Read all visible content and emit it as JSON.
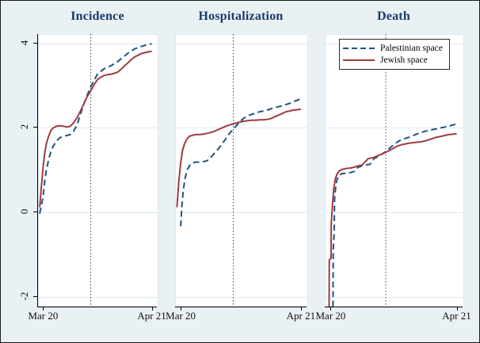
{
  "figure": {
    "background": "#e9f1f4",
    "border_color": "#1a1a1a",
    "title_color": "#1b3a6b",
    "gridline_color": "#dde9ee",
    "reference_line_color": "#444444"
  },
  "legend": {
    "items": [
      {
        "label": "Palestinian space",
        "style": "dashed",
        "color": "#1f5382"
      },
      {
        "label": "Jewish space",
        "style": "solid",
        "color": "#9e3c40"
      }
    ]
  },
  "y_axis": {
    "ticks": [
      {
        "value": -2,
        "label": "-2"
      },
      {
        "value": 0,
        "label": "0"
      },
      {
        "value": 2,
        "label": "2"
      },
      {
        "value": 4,
        "label": "4"
      }
    ]
  },
  "chart_data": [
    {
      "type": "line",
      "title": "Incidence",
      "xlabel": "",
      "ylabel": "",
      "xlim_days": [
        -1.5,
        33.5
      ],
      "ylim": [
        -2.25,
        4.2
      ],
      "grid": true,
      "legend_position": "top-right-of-third-panel",
      "x_ticks": [
        {
          "day": 0,
          "label": "Mar 20"
        },
        {
          "day": 32,
          "label": "Apr 21"
        }
      ],
      "vline_day": 14,
      "series": [
        {
          "name": "Palestinian space",
          "style": "dashed",
          "color": "#1f5382",
          "points": [
            [
              -1,
              -0.05
            ],
            [
              0,
              0.35
            ],
            [
              0.5,
              0.75
            ],
            [
              1,
              1.0
            ],
            [
              1.7,
              1.25
            ],
            [
              2.3,
              1.42
            ],
            [
              3,
              1.55
            ],
            [
              4,
              1.68
            ],
            [
              5,
              1.75
            ],
            [
              6,
              1.78
            ],
            [
              7,
              1.8
            ],
            [
              8,
              1.82
            ],
            [
              9,
              1.9
            ],
            [
              10,
              2.05
            ],
            [
              11,
              2.3
            ],
            [
              12,
              2.55
            ],
            [
              13,
              2.75
            ],
            [
              14,
              2.95
            ],
            [
              15,
              3.1
            ],
            [
              16,
              3.25
            ],
            [
              17,
              3.32
            ],
            [
              18,
              3.38
            ],
            [
              19,
              3.42
            ],
            [
              20,
              3.45
            ],
            [
              21,
              3.5
            ],
            [
              22,
              3.55
            ],
            [
              23,
              3.62
            ],
            [
              24,
              3.68
            ],
            [
              25,
              3.75
            ],
            [
              26,
              3.8
            ],
            [
              27,
              3.85
            ],
            [
              28,
              3.88
            ],
            [
              29,
              3.91
            ],
            [
              30,
              3.93
            ],
            [
              31,
              3.95
            ],
            [
              32,
              3.97
            ]
          ]
        },
        {
          "name": "Jewish space",
          "style": "solid",
          "color": "#9e3c40",
          "points": [
            [
              -1,
              0.1
            ],
            [
              -0.5,
              0.6
            ],
            [
              0,
              1.05
            ],
            [
              0.5,
              1.4
            ],
            [
              1,
              1.62
            ],
            [
              1.7,
              1.8
            ],
            [
              2.3,
              1.92
            ],
            [
              3,
              1.98
            ],
            [
              4,
              2.02
            ],
            [
              5,
              2.03
            ],
            [
              6,
              2.02
            ],
            [
              7,
              2.0
            ],
            [
              8,
              2.02
            ],
            [
              9,
              2.1
            ],
            [
              10,
              2.22
            ],
            [
              11,
              2.38
            ],
            [
              12,
              2.55
            ],
            [
              13,
              2.72
            ],
            [
              14,
              2.85
            ],
            [
              15,
              3.0
            ],
            [
              16,
              3.12
            ],
            [
              17,
              3.18
            ],
            [
              18,
              3.22
            ],
            [
              19,
              3.24
            ],
            [
              20,
              3.25
            ],
            [
              21,
              3.27
            ],
            [
              22,
              3.3
            ],
            [
              23,
              3.37
            ],
            [
              24,
              3.45
            ],
            [
              25,
              3.52
            ],
            [
              26,
              3.6
            ],
            [
              27,
              3.66
            ],
            [
              28,
              3.7
            ],
            [
              29,
              3.74
            ],
            [
              30,
              3.76
            ],
            [
              31,
              3.78
            ],
            [
              32,
              3.79
            ]
          ]
        }
      ]
    },
    {
      "type": "line",
      "title": "Hospitalization",
      "xlabel": "",
      "ylabel": "",
      "xlim_days": [
        -1.5,
        33.5
      ],
      "ylim": [
        -2.25,
        4.2
      ],
      "grid": true,
      "x_ticks": [
        {
          "day": 0,
          "label": "Mar 20"
        },
        {
          "day": 32,
          "label": "Apr 21"
        }
      ],
      "vline_day": 14,
      "series": [
        {
          "name": "Palestinian space",
          "style": "dashed",
          "color": "#1f5382",
          "points": [
            [
              0,
              -0.35
            ],
            [
              0.3,
              0.1
            ],
            [
              0.7,
              0.5
            ],
            [
              1.2,
              0.8
            ],
            [
              1.8,
              1.0
            ],
            [
              2.5,
              1.1
            ],
            [
              3.2,
              1.15
            ],
            [
              4,
              1.17
            ],
            [
              5,
              1.17
            ],
            [
              6,
              1.18
            ],
            [
              7,
              1.2
            ],
            [
              8,
              1.28
            ],
            [
              9,
              1.38
            ],
            [
              10,
              1.48
            ],
            [
              11,
              1.6
            ],
            [
              12,
              1.72
            ],
            [
              13,
              1.85
            ],
            [
              14,
              1.95
            ],
            [
              15,
              2.05
            ],
            [
              16,
              2.15
            ],
            [
              17,
              2.22
            ],
            [
              18,
              2.27
            ],
            [
              19,
              2.3
            ],
            [
              20,
              2.33
            ],
            [
              21,
              2.36
            ],
            [
              22,
              2.38
            ],
            [
              23,
              2.4
            ],
            [
              24,
              2.43
            ],
            [
              25,
              2.46
            ],
            [
              26,
              2.48
            ],
            [
              27,
              2.5
            ],
            [
              28,
              2.53
            ],
            [
              29,
              2.56
            ],
            [
              30,
              2.6
            ],
            [
              31,
              2.63
            ],
            [
              32,
              2.67
            ]
          ]
        },
        {
          "name": "Jewish space",
          "style": "solid",
          "color": "#9e3c40",
          "points": [
            [
              -1,
              0.1
            ],
            [
              -0.5,
              0.7
            ],
            [
              0,
              1.15
            ],
            [
              0.5,
              1.45
            ],
            [
              1,
              1.6
            ],
            [
              1.7,
              1.72
            ],
            [
              2.3,
              1.78
            ],
            [
              3,
              1.8
            ],
            [
              4,
              1.82
            ],
            [
              5,
              1.82
            ],
            [
              6,
              1.83
            ],
            [
              7,
              1.85
            ],
            [
              8,
              1.87
            ],
            [
              9,
              1.9
            ],
            [
              10,
              1.94
            ],
            [
              11,
              1.98
            ],
            [
              12,
              2.02
            ],
            [
              13,
              2.05
            ],
            [
              14,
              2.07
            ],
            [
              15,
              2.1
            ],
            [
              16,
              2.12
            ],
            [
              17,
              2.14
            ],
            [
              18,
              2.15
            ],
            [
              19,
              2.16
            ],
            [
              20,
              2.16
            ],
            [
              21,
              2.17
            ],
            [
              22,
              2.17
            ],
            [
              23,
              2.18
            ],
            [
              24,
              2.2
            ],
            [
              25,
              2.24
            ],
            [
              26,
              2.28
            ],
            [
              27,
              2.32
            ],
            [
              28,
              2.36
            ],
            [
              29,
              2.38
            ],
            [
              30,
              2.4
            ],
            [
              31,
              2.41
            ],
            [
              32,
              2.42
            ]
          ]
        }
      ]
    },
    {
      "type": "line",
      "title": "Death",
      "xlabel": "",
      "ylabel": "",
      "xlim_days": [
        -1.5,
        33.5
      ],
      "ylim": [
        -2.25,
        4.2
      ],
      "grid": true,
      "x_ticks": [
        {
          "day": 0,
          "label": "Mar 20"
        },
        {
          "day": 32,
          "label": "Apr 21"
        }
      ],
      "vline_day": 14,
      "series": [
        {
          "name": "Palestinian space",
          "style": "dashed",
          "color": "#1f5382",
          "points": [
            [
              0.6,
              -2.25
            ],
            [
              0.65,
              -0.9
            ],
            [
              0.9,
              -0.5
            ],
            [
              1.0,
              0.3
            ],
            [
              1.3,
              0.6
            ],
            [
              1.6,
              0.75
            ],
            [
              2,
              0.85
            ],
            [
              2.5,
              0.88
            ],
            [
              3,
              0.9
            ],
            [
              4,
              0.9
            ],
            [
              5,
              0.92
            ],
            [
              6,
              0.95
            ],
            [
              6.5,
              1.0
            ],
            [
              7,
              1.05
            ],
            [
              8,
              1.08
            ],
            [
              9,
              1.1
            ],
            [
              10,
              1.12
            ],
            [
              10.5,
              1.18
            ],
            [
              11,
              1.25
            ],
            [
              12,
              1.3
            ],
            [
              13,
              1.36
            ],
            [
              14,
              1.42
            ],
            [
              15,
              1.5
            ],
            [
              16,
              1.58
            ],
            [
              17,
              1.65
            ],
            [
              18,
              1.7
            ],
            [
              19,
              1.73
            ],
            [
              20,
              1.76
            ],
            [
              21,
              1.8
            ],
            [
              22,
              1.84
            ],
            [
              23,
              1.87
            ],
            [
              24,
              1.9
            ],
            [
              25,
              1.92
            ],
            [
              26,
              1.94
            ],
            [
              27,
              1.96
            ],
            [
              28,
              1.98
            ],
            [
              29,
              2.0
            ],
            [
              30,
              2.02
            ],
            [
              31,
              2.05
            ],
            [
              32,
              2.07
            ]
          ]
        },
        {
          "name": "Jewish space",
          "style": "solid",
          "color": "#9e3c40",
          "points": [
            [
              -0.4,
              -2.25
            ],
            [
              -0.35,
              -1.15
            ],
            [
              0.1,
              -1.1
            ],
            [
              0.15,
              -0.3
            ],
            [
              0.5,
              0.2
            ],
            [
              0.8,
              0.55
            ],
            [
              1.2,
              0.78
            ],
            [
              1.7,
              0.9
            ],
            [
              2.3,
              0.97
            ],
            [
              3,
              1.0
            ],
            [
              4,
              1.02
            ],
            [
              5,
              1.03
            ],
            [
              6,
              1.05
            ],
            [
              7,
              1.08
            ],
            [
              8,
              1.1
            ],
            [
              9,
              1.2
            ],
            [
              9.5,
              1.25
            ],
            [
              10,
              1.26
            ],
            [
              11,
              1.28
            ],
            [
              12,
              1.32
            ],
            [
              13,
              1.36
            ],
            [
              14,
              1.4
            ],
            [
              15,
              1.45
            ],
            [
              16,
              1.5
            ],
            [
              17,
              1.55
            ],
            [
              18,
              1.58
            ],
            [
              19,
              1.6
            ],
            [
              20,
              1.62
            ],
            [
              21,
              1.63
            ],
            [
              22,
              1.64
            ],
            [
              23,
              1.65
            ],
            [
              24,
              1.67
            ],
            [
              25,
              1.7
            ],
            [
              26,
              1.73
            ],
            [
              27,
              1.76
            ],
            [
              28,
              1.78
            ],
            [
              29,
              1.8
            ],
            [
              30,
              1.82
            ],
            [
              31,
              1.83
            ],
            [
              32,
              1.84
            ]
          ]
        }
      ]
    }
  ]
}
